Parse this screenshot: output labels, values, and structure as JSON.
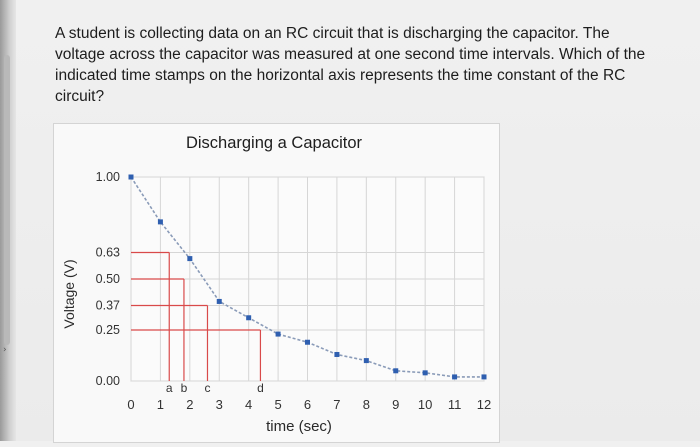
{
  "question": {
    "text": "A student is collecting data on an RC circuit that is discharging the capacitor. The voltage across the capacitor was measured at one second time intervals. Which of the indicated time stamps on the horizontal axis represents the time constant of the RC circuit?"
  },
  "chart_data": {
    "type": "scatter",
    "title": "Discharging a Capacitor",
    "xlabel": "time (sec)",
    "ylabel": "Voltage (V)",
    "xlim": [
      0,
      12
    ],
    "ylim": [
      0,
      1
    ],
    "x_ticks": [
      "0",
      "1",
      "2",
      "3",
      "4",
      "5",
      "6",
      "7",
      "8",
      "9",
      "10",
      "11",
      "12"
    ],
    "y_ticks": [
      {
        "value": 1.0,
        "label": "1.00"
      },
      {
        "value": 0.63,
        "label": "0.63"
      },
      {
        "value": 0.5,
        "label": "0.50"
      },
      {
        "value": 0.37,
        "label": "0.37"
      },
      {
        "value": 0.25,
        "label": "0.25"
      },
      {
        "value": 0.0,
        "label": "0.00"
      }
    ],
    "grid": true,
    "series": [
      {
        "x": [
          0,
          1,
          2,
          3,
          4,
          5,
          6,
          7,
          8,
          9,
          10,
          11,
          12
        ],
        "y": [
          1.0,
          0.78,
          0.6,
          0.39,
          0.31,
          0.23,
          0.19,
          0.13,
          0.1,
          0.05,
          0.04,
          0.02,
          0.02
        ],
        "color": "#2f5fb0"
      }
    ],
    "markers": [
      {
        "label": "a",
        "x": 1.3,
        "y": 0.63
      },
      {
        "label": "b",
        "x": 1.8,
        "y": 0.5
      },
      {
        "label": "c",
        "x": 2.6,
        "y": 0.37
      },
      {
        "label": "d",
        "x": 4.4,
        "y": 0.25
      }
    ],
    "colors": {
      "marker_line": "#d94a4a",
      "trend": "#8a9bb8",
      "point": "#2f5fb0"
    }
  }
}
